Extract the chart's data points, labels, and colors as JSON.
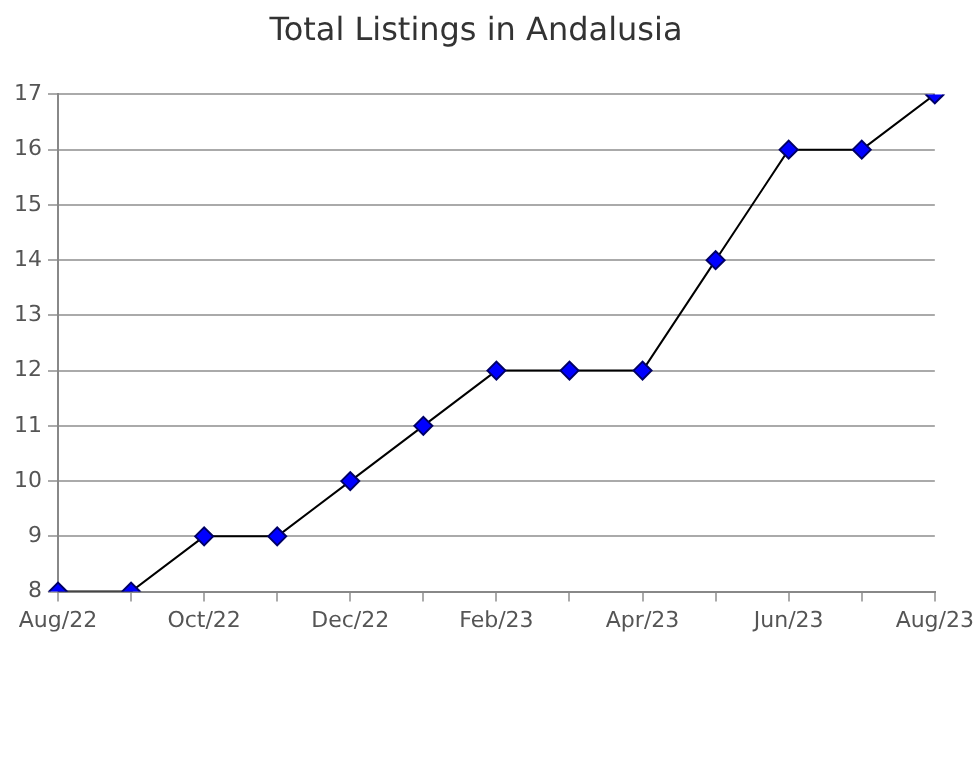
{
  "chart_data": {
    "type": "line",
    "title": "Total Listings in Andalusia",
    "categories": [
      "Aug/22",
      null,
      "Oct/22",
      null,
      "Dec/22",
      null,
      "Feb/23",
      null,
      "Apr/23",
      null,
      "Jun/23",
      null,
      "Aug/23"
    ],
    "series": [
      {
        "color": "#0000ff",
        "values": [
          8,
          8,
          9,
          9,
          10,
          11,
          12,
          12,
          12,
          14,
          16,
          16,
          17
        ]
      }
    ],
    "ylim": [
      8,
      17
    ],
    "yticks": [
      8,
      9,
      10,
      11,
      12,
      13,
      14,
      15,
      16,
      17
    ],
    "grid": "y",
    "marker": "diamond",
    "line_style": "solid",
    "legend": false
  }
}
